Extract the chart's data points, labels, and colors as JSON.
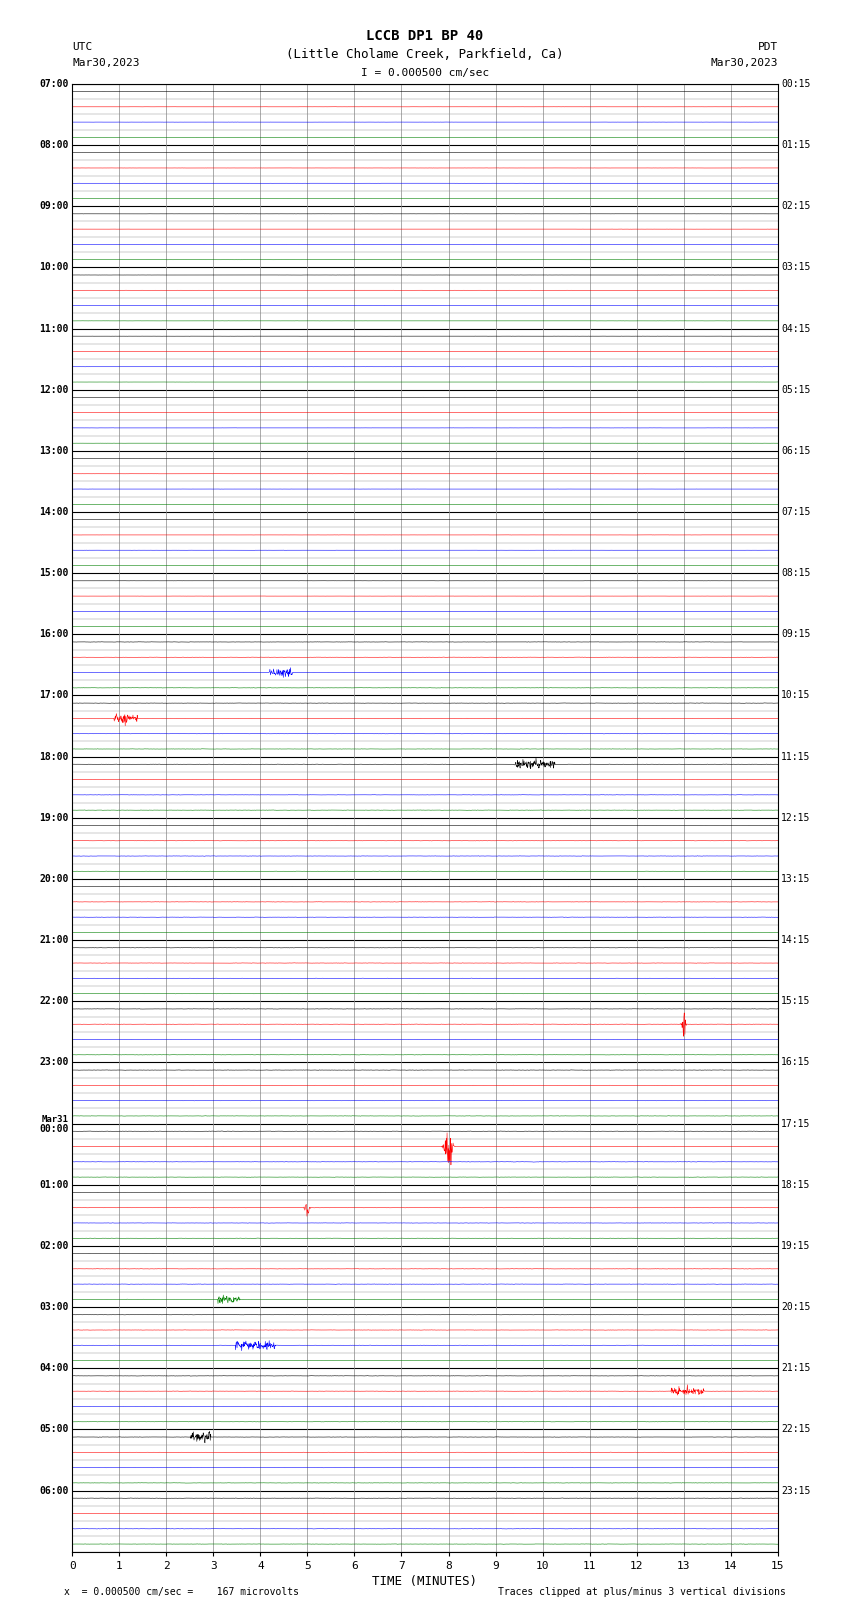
{
  "title_line1": "LCCB DP1 BP 40",
  "title_line2": "(Little Cholame Creek, Parkfield, Ca)",
  "scale_label": "I = 0.000500 cm/sec",
  "left_header_line1": "UTC",
  "left_header_line2": "Mar30,2023",
  "right_header_line1": "PDT",
  "right_header_line2": "Mar30,2023",
  "xlabel": "TIME (MINUTES)",
  "bottom_left": "x  = 0.000500 cm/sec =    167 microvolts",
  "bottom_right": "Traces clipped at plus/minus 3 vertical divisions",
  "x_min": 0,
  "x_max": 15,
  "x_ticks": [
    0,
    1,
    2,
    3,
    4,
    5,
    6,
    7,
    8,
    9,
    10,
    11,
    12,
    13,
    14,
    15
  ],
  "left_times_labeled": [
    "07:00",
    "08:00",
    "09:00",
    "10:00",
    "11:00",
    "12:00",
    "13:00",
    "14:00",
    "15:00",
    "16:00",
    "17:00",
    "18:00",
    "19:00",
    "20:00",
    "21:00",
    "22:00",
    "23:00",
    "Mar31\n00:00",
    "01:00",
    "02:00",
    "03:00",
    "04:00",
    "05:00",
    "06:00"
  ],
  "right_times_labeled": [
    "00:15",
    "01:15",
    "02:15",
    "03:15",
    "04:15",
    "05:15",
    "06:15",
    "07:15",
    "08:15",
    "09:15",
    "10:15",
    "11:15",
    "12:15",
    "13:15",
    "14:15",
    "15:15",
    "16:15",
    "17:15",
    "18:15",
    "19:15",
    "20:15",
    "21:15",
    "22:15",
    "23:15"
  ],
  "n_hour_blocks": 24,
  "traces_per_block": 4,
  "trace_colors": [
    "#000000",
    "#ff0000",
    "#0000ff",
    "#008000"
  ],
  "quiet_blocks": 9,
  "fig_width": 8.5,
  "fig_height": 16.13,
  "bg_color": "#ffffff"
}
